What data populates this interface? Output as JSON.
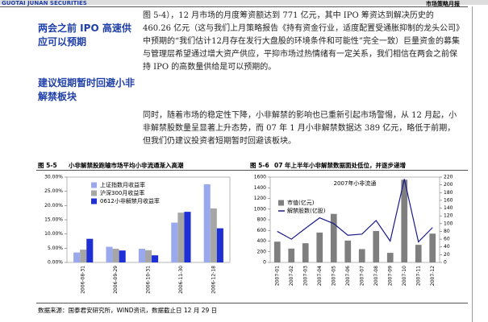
{
  "header": {
    "logo": "GUOTAI JUNAN SECURITIES",
    "report": "市场策略月报"
  },
  "sections": [
    {
      "heading": "两会之前 IPO 高速供应可以预期",
      "text": "图 5-4），12 月市场的月度筹资额达到 771 亿元，其中 IPO 筹资达到解决历史的 460.26 亿元（这与我们上月策略报告《持有资金行业，适度配置受通胀抑制的龙头公司》中预期的“我们估计12月存在发行大盘股的环境条件和可能性”完全一致）巨量资金的募集与管理层希望通过增大资产供应，平抑市场过热情绪有一定关系，我们相信在两会之前保持 IPO 的高数量供给是可以预期的。"
    },
    {
      "heading": "建议短期暂时回避小非解禁板块",
      "text": "同时，随着市场的稳定性下降，小非解禁的影响也已重新引起市场警惕，从 12 月起，小非解禁股数量呈显著上升态势，而 07 年 1 月小非解禁数据达 389 亿元，略低于前期，但我们仍建议投资者短期暂时回避该板块。"
    }
  ],
  "figures": [
    {
      "number": "图 5-5",
      "caption": "小非解禁股跑输市场平均小非流通渐入高潮"
    },
    {
      "number": "图 5-6",
      "caption": "07 年上半年小非解禁数据面处低位，并逐步递增"
    }
  ],
  "source": "数据来源：国泰君安研究所，WIND资讯，数据截止日 12 月 29 日",
  "chart_data": [
    {
      "type": "bar",
      "categories": [
        "2006-08-31",
        "2006-09-29",
        "2006-10-31",
        "2006-11-30",
        "2006-12-18"
      ],
      "series": [
        {
          "name": "上证指数月收益率",
          "color": "#9aa9ee",
          "values": [
            3.5,
            5.5,
            4.8,
            14,
            27.5
          ]
        },
        {
          "name": "沪深300月收益率",
          "color": "#a6a6a6",
          "values": [
            4.5,
            4.8,
            4.3,
            17.5,
            19
          ]
        },
        {
          "name": "0612小非解禁月收益率",
          "color": "#1f2fd6",
          "values": [
            8.3,
            4.2,
            2.5,
            17.8,
            12
          ]
        }
      ],
      "ylim": [
        0,
        30
      ],
      "yticks": [
        {
          "value": 0,
          "label": "0.00%"
        },
        {
          "value": 5,
          "label": "5.00%"
        },
        {
          "value": 10,
          "label": "10.00%"
        },
        {
          "value": 15,
          "label": "15.00%"
        },
        {
          "value": 20,
          "label": "20.00%"
        },
        {
          "value": 25,
          "label": "25.00%"
        },
        {
          "value": 30,
          "label": "30.00%"
        }
      ],
      "grid": false,
      "legend": "top-left"
    },
    {
      "type": "combo",
      "title": "2007年小非流通",
      "categories": [
        "2007-01",
        "2007-02",
        "2007-03",
        "2007-04",
        "2007-05",
        "2007-06",
        "2007-07",
        "2007-08",
        "2007-09",
        "2007-10",
        "2007-11",
        "2007-12"
      ],
      "series": [
        {
          "name": "市值(亿元)",
          "color": "#7f7f7f",
          "type": "bar",
          "values": [
            390,
            260,
            360,
            560,
            910,
            410,
            250,
            590,
            180,
            1550,
            330,
            540
          ]
        },
        {
          "name": "解禁股数(亿股)",
          "color": "#1a1a8c",
          "type": "line",
          "axis": "y2",
          "values": [
            80,
            60,
            88,
            115,
            100,
            70,
            73,
            108,
            55,
            215,
            53,
            90
          ]
        }
      ],
      "ylim": [
        0,
        1600
      ],
      "yticks": [
        0,
        200,
        400,
        600,
        800,
        1000,
        1200,
        1400,
        1600
      ],
      "y2lim": [
        0,
        220
      ],
      "y2ticks": [
        0,
        20,
        40,
        60,
        80,
        100,
        120,
        140,
        160,
        180,
        200,
        220
      ],
      "grid": false,
      "legend": "top-left"
    }
  ]
}
